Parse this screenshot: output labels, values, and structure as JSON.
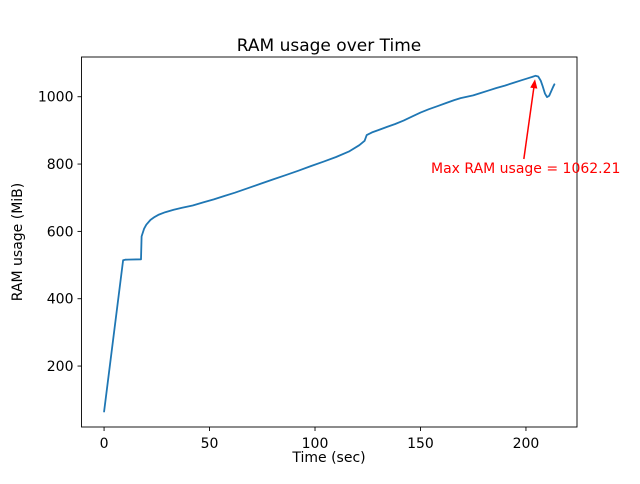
{
  "figure": {
    "background": "#ffffff"
  },
  "chart_data": {
    "type": "line",
    "title": "RAM usage over Time",
    "xlabel": "Time (sec)",
    "ylabel": "RAM usage (MiB)",
    "xlim": [
      -10.7,
      224.2
    ],
    "ylim": [
      19,
      1118
    ],
    "xticks": [
      0,
      50,
      100,
      150,
      200
    ],
    "yticks": [
      200,
      400,
      600,
      800,
      1000
    ],
    "grid": false,
    "legend": null,
    "line_color": "#1f77b4",
    "axis_color": "#000000",
    "series": [
      {
        "name": "RAM usage",
        "points": [
          [
            0,
            65
          ],
          [
            9,
            514
          ],
          [
            10,
            516
          ],
          [
            17.5,
            517
          ],
          [
            17.8,
            585
          ],
          [
            19,
            608
          ],
          [
            20,
            620
          ],
          [
            22,
            634
          ],
          [
            24,
            643
          ],
          [
            26,
            650
          ],
          [
            29,
            657
          ],
          [
            33,
            664
          ],
          [
            37,
            670
          ],
          [
            42,
            677
          ],
          [
            47,
            686
          ],
          [
            52,
            695
          ],
          [
            57,
            705
          ],
          [
            62,
            715
          ],
          [
            68,
            728
          ],
          [
            74,
            741
          ],
          [
            80,
            754
          ],
          [
            86,
            767
          ],
          [
            92,
            780
          ],
          [
            98,
            794
          ],
          [
            104,
            807
          ],
          [
            110,
            821
          ],
          [
            116,
            837
          ],
          [
            121,
            856
          ],
          [
            123.5,
            869
          ],
          [
            124.5,
            886
          ],
          [
            127,
            894
          ],
          [
            130,
            901
          ],
          [
            134,
            910
          ],
          [
            138,
            919
          ],
          [
            142,
            929
          ],
          [
            146,
            941
          ],
          [
            150,
            953
          ],
          [
            154,
            963
          ],
          [
            158,
            972
          ],
          [
            162,
            981
          ],
          [
            166,
            990
          ],
          [
            169,
            996
          ],
          [
            172,
            1000
          ],
          [
            175,
            1004
          ],
          [
            178,
            1010
          ],
          [
            182,
            1018
          ],
          [
            186,
            1026
          ],
          [
            190,
            1033
          ],
          [
            194,
            1041
          ],
          [
            198,
            1049
          ],
          [
            201,
            1055
          ],
          [
            203,
            1059
          ],
          [
            204.5,
            1062.21
          ],
          [
            205.8,
            1060
          ],
          [
            207,
            1048
          ],
          [
            208,
            1030
          ],
          [
            209,
            1010
          ],
          [
            210,
            999
          ],
          [
            211,
            1003
          ],
          [
            212,
            1017
          ],
          [
            213,
            1031
          ],
          [
            213.5,
            1037
          ]
        ]
      }
    ],
    "annotation": {
      "text": "Max RAM usage = 1062.21",
      "color": "#ff0000",
      "text_pos": [
        155,
        786
      ],
      "arrow_tail": [
        199,
        815
      ],
      "arrow_tip": [
        204.3,
        1052
      ]
    }
  }
}
